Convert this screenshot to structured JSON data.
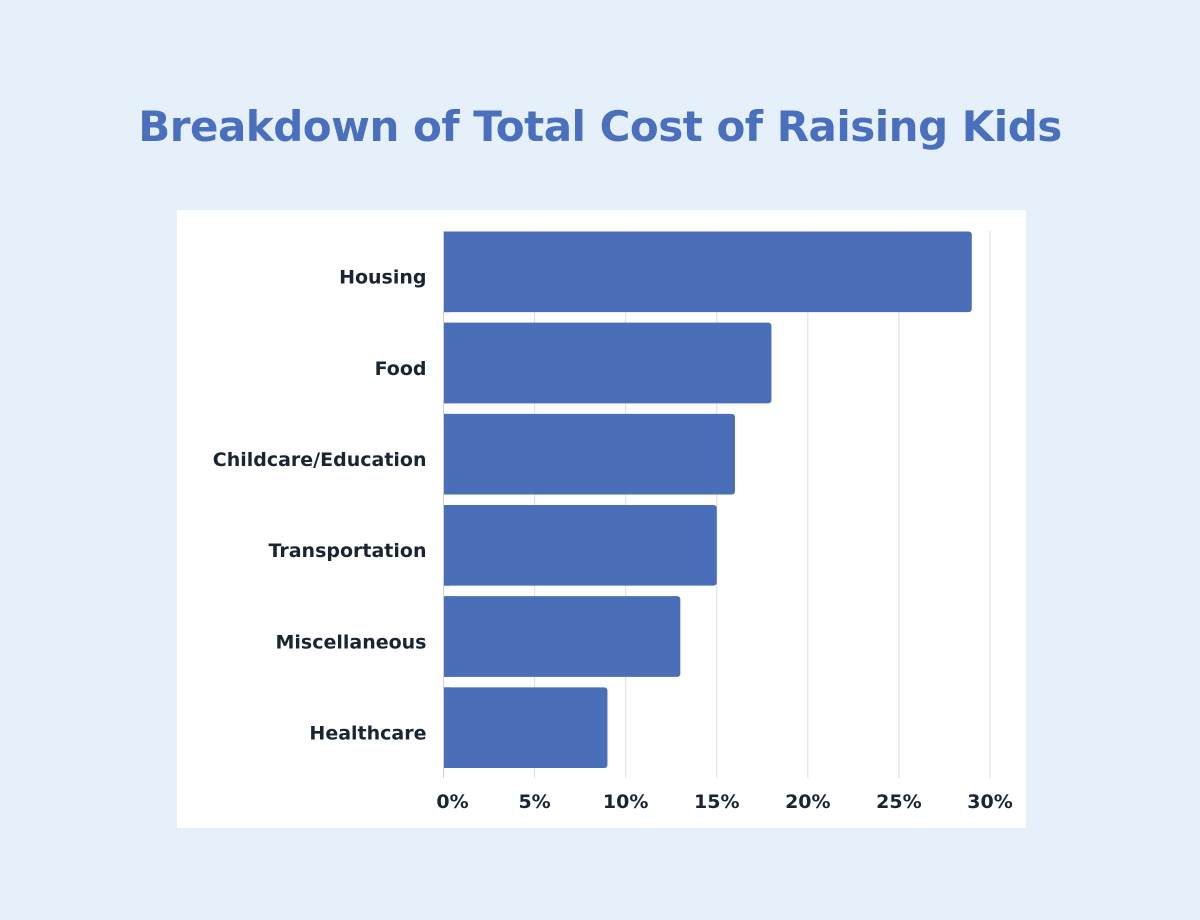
{
  "chart_data": {
    "type": "bar",
    "orientation": "horizontal",
    "title": "Breakdown of Total Cost of Raising Kids",
    "categories": [
      "Housing",
      "Food",
      "Childcare/Education",
      "Transportation",
      "Miscellaneous",
      "Healthcare"
    ],
    "values": [
      29,
      18,
      16,
      15,
      13,
      9
    ],
    "xlabel": "",
    "ylabel": "",
    "xlim": [
      0,
      30
    ],
    "x_ticks": [
      0,
      5,
      10,
      15,
      20,
      25,
      30
    ],
    "x_tick_labels": [
      "0%",
      "5%",
      "10%",
      "15%",
      "20%",
      "25%",
      "30%"
    ],
    "grid": "vertical",
    "legend": "none",
    "colors": {
      "bar": "#4a6eb8",
      "background": "#e6f0fa",
      "panel": "#ffffff",
      "title": "#4a6fbc",
      "text": "#1b2532",
      "grid": "#dddddd"
    }
  }
}
